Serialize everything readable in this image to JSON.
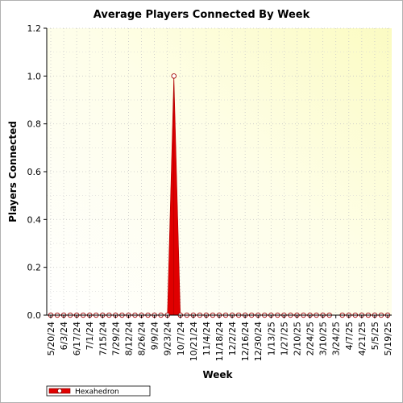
{
  "chart_data": {
    "type": "area",
    "title": "Average Players Connected By Week",
    "xlabel": "Week",
    "ylabel": "Players Connected",
    "ylim": [
      0,
      1.2
    ],
    "yticks": [
      "0.0",
      "0.2",
      "0.4",
      "0.6",
      "0.8",
      "1.0",
      "1.2"
    ],
    "x_tick_labels": [
      "5/20/24",
      "6/3/24",
      "6/17/24",
      "7/1/24",
      "7/15/24",
      "7/29/24",
      "8/12/24",
      "8/26/24",
      "9/9/24",
      "9/23/24",
      "10/7/24",
      "10/21/24",
      "11/4/24",
      "11/18/24",
      "12/2/24",
      "12/16/24",
      "12/30/24",
      "1/13/25",
      "1/27/25",
      "2/10/25",
      "2/24/25",
      "3/10/25",
      "3/24/25",
      "4/7/25",
      "4/21/25",
      "5/5/25",
      "5/19/25"
    ],
    "grid": true,
    "legend_position": "bottom-left",
    "series": [
      {
        "name": "Hexahedron",
        "color": "#e00000",
        "x": [
          "5/20/24",
          "5/27/24",
          "6/3/24",
          "6/10/24",
          "6/17/24",
          "6/24/24",
          "7/1/24",
          "7/8/24",
          "7/15/24",
          "7/22/24",
          "7/29/24",
          "8/5/24",
          "8/12/24",
          "8/19/24",
          "8/26/24",
          "9/2/24",
          "9/9/24",
          "9/16/24",
          "9/23/24",
          "9/30/24",
          "10/7/24",
          "10/14/24",
          "10/21/24",
          "10/28/24",
          "11/4/24",
          "11/11/24",
          "11/18/24",
          "11/25/24",
          "12/2/24",
          "12/9/24",
          "12/16/24",
          "12/23/24",
          "12/30/24",
          "1/6/25",
          "1/13/25",
          "1/20/25",
          "1/27/25",
          "2/3/25",
          "2/10/25",
          "2/17/25",
          "2/24/25",
          "3/3/25",
          "3/10/25",
          "3/17/25",
          "3/24/25",
          "3/31/25",
          "4/7/25",
          "4/14/25",
          "4/21/25",
          "4/28/25",
          "5/5/25",
          "5/12/25",
          "5/19/25"
        ],
        "values": [
          0,
          0,
          0,
          0,
          0,
          0,
          0,
          0,
          0,
          0,
          0,
          0,
          0,
          0,
          0,
          0,
          0,
          0,
          0,
          1.0,
          0,
          0,
          0,
          0,
          0,
          0,
          0,
          0,
          0,
          0,
          0,
          0,
          0,
          0,
          0,
          0,
          0,
          0,
          0,
          0,
          0,
          0,
          0,
          0,
          null,
          0,
          0,
          0,
          0,
          0,
          0,
          0,
          0
        ]
      }
    ]
  }
}
